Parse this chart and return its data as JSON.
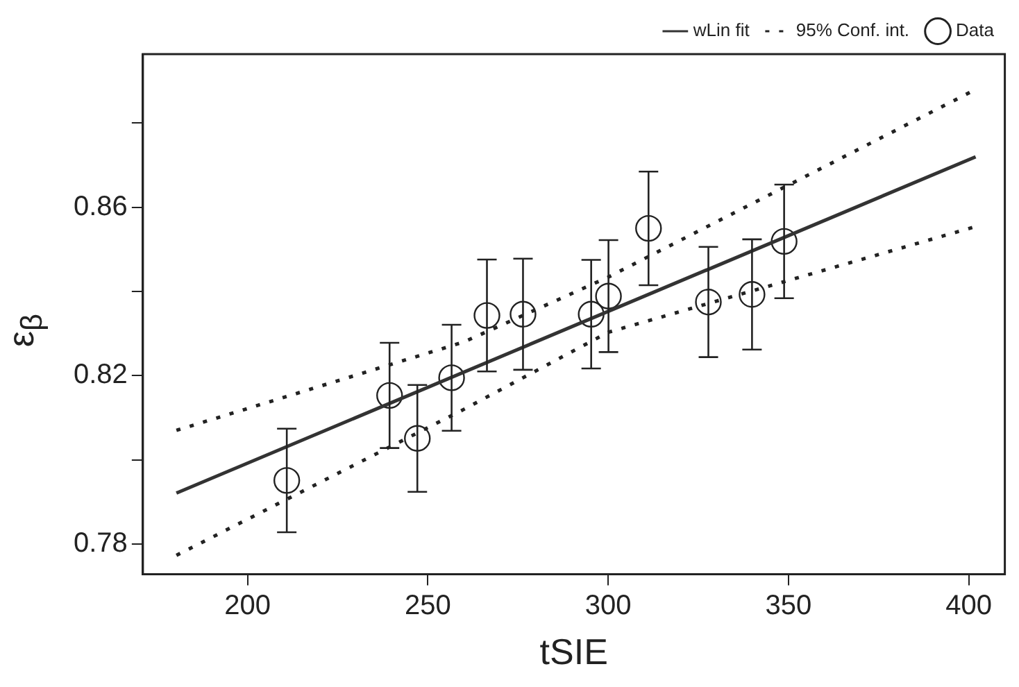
{
  "chart_data": {
    "type": "scatter",
    "xlabel": "tSIE",
    "ylabel": "ε$_{β}$",
    "xlim": [
      171,
      410
    ],
    "ylim": [
      0.7728,
      0.8964
    ],
    "xticks": [
      200,
      250,
      300,
      350,
      400
    ],
    "yticks": [
      0.78,
      {
        "value": 0.8,
        "label": null
      },
      0.82,
      {
        "value": 0.84,
        "label": null
      },
      0.86,
      {
        "value": 0.88,
        "label": null
      }
    ],
    "grid": false,
    "legend": "top right",
    "series": [
      {
        "name": "wLin fit",
        "type": "line",
        "color": "#333333",
        "line_style": "solid",
        "marker": "none",
        "x": [
          180.3,
          401.9
        ],
        "values": [
          0.7921,
          0.872
        ]
      },
      {
        "name": "95% Conf. int.",
        "type": "line",
        "color": "#222222",
        "line_style": "dotted",
        "marker": "none",
        "x": [
          180.3,
          260,
          300,
          401
        ],
        "values": [
          0.807,
          0.828,
          0.8434,
          0.8876
        ]
      },
      {
        "type": "line",
        "color": "#222222",
        "line_style": "dotted",
        "marker": "none",
        "x": [
          180.3,
          260,
          300,
          401
        ],
        "values": [
          0.7773,
          0.812,
          0.8303,
          0.8552
        ]
      },
      {
        "name": "Data",
        "type": "scatter",
        "color": "#222222",
        "marker": "circle",
        "x": [
          210.9,
          239.4,
          247.1,
          256.6,
          266.4,
          276.4,
          295.3,
          300.1,
          311.2,
          327.8,
          339.9,
          348.8
        ],
        "values": [
          0.7951,
          0.8153,
          0.8051,
          0.8195,
          0.8343,
          0.8346,
          0.8346,
          0.8389,
          0.855,
          0.8375,
          0.8393,
          0.8519
        ],
        "errors": [
          0.0123,
          0.0125,
          0.0127,
          0.0126,
          0.0133,
          0.0132,
          0.0129,
          0.0133,
          0.0135,
          0.0131,
          0.0131,
          0.0135
        ]
      }
    ]
  }
}
